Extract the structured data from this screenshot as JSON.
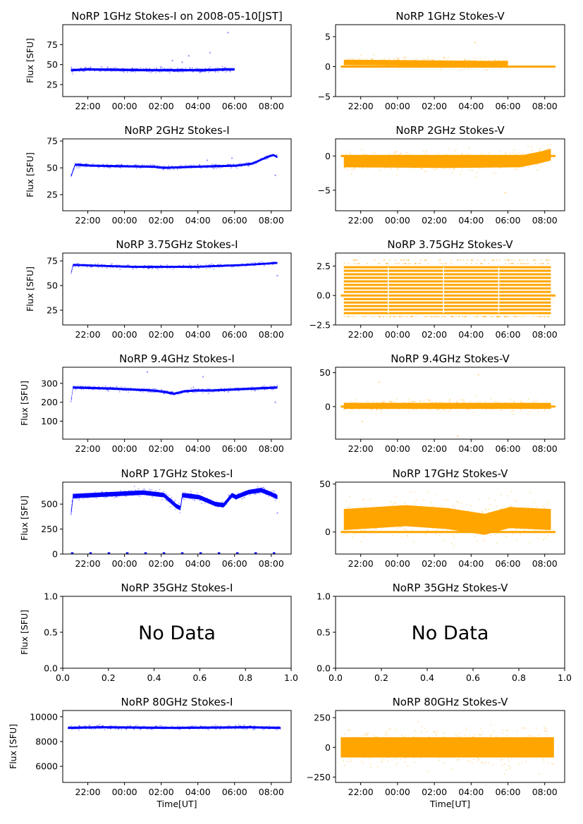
{
  "figure": {
    "xlabel": "Time[UT]",
    "ylabel": "Flux [SFU]",
    "colors": {
      "stokes_i": "#0000ff",
      "stokes_v": "#ffa500"
    }
  },
  "chart_data": [
    {
      "type": "scatter",
      "title": "NoRP 1GHz Stokes-I on 2008-05-10[JST]",
      "ylabel": "Flux [SFU]",
      "xlabel": "",
      "ylim": [
        10,
        100
      ],
      "yticks": [
        25,
        50,
        75
      ],
      "xlim": [
        "20:38",
        "09:05"
      ],
      "xticks": [
        "22:00",
        "00:00",
        "02:00",
        "04:00",
        "06:00",
        "08:00"
      ],
      "color": "#0000ff",
      "no_data": false,
      "series": {
        "start": "21:05",
        "end": "06:00",
        "profile": [
          [
            0,
            43
          ],
          [
            0.1,
            44
          ],
          [
            0.5,
            43
          ],
          [
            0.8,
            43
          ],
          [
            0.95,
            44
          ],
          [
            1,
            44
          ]
        ],
        "spread": 3,
        "outliers": [
          [
            0.55,
            47
          ],
          [
            0.62,
            55
          ],
          [
            0.68,
            53
          ],
          [
            0.72,
            61
          ],
          [
            0.85,
            65
          ],
          [
            0.96,
            90
          ]
        ]
      }
    },
    {
      "type": "scatter",
      "title": "NoRP 1GHz Stokes-V",
      "ylabel": "",
      "xlabel": "",
      "ylim": [
        -5,
        7
      ],
      "yticks": [
        -5,
        0,
        5
      ],
      "xlim": [
        "20:38",
        "09:05"
      ],
      "xticks": [
        "22:00",
        "00:00",
        "02:00",
        "04:00",
        "06:00",
        "08:00"
      ],
      "color": "#ffa500",
      "no_data": false,
      "series": {
        "start": "21:05",
        "end": "06:00",
        "profile": [
          [
            0,
            0.7
          ],
          [
            0.5,
            0.6
          ],
          [
            0.9,
            0.5
          ],
          [
            1,
            0.5
          ]
        ],
        "spread": 0.9,
        "zero_line": [
          "20:55",
          "08:35"
        ],
        "outliers": [
          [
            0.8,
            4
          ]
        ]
      }
    },
    {
      "type": "scatter",
      "title": "NoRP 2GHz Stokes-I",
      "ylabel": "Flux [SFU]",
      "xlabel": "",
      "ylim": [
        10,
        77
      ],
      "yticks": [
        25,
        50,
        75
      ],
      "xlim": [
        "20:38",
        "09:05"
      ],
      "xticks": [
        "22:00",
        "00:00",
        "02:00",
        "04:00",
        "06:00",
        "08:00"
      ],
      "color": "#0000ff",
      "no_data": false,
      "series": {
        "start": "21:05",
        "end": "08:20",
        "profile": [
          [
            0,
            42
          ],
          [
            0.02,
            53
          ],
          [
            0.1,
            52
          ],
          [
            0.4,
            51
          ],
          [
            0.45,
            50
          ],
          [
            0.6,
            51
          ],
          [
            0.8,
            52
          ],
          [
            0.88,
            54
          ],
          [
            0.95,
            60
          ],
          [
            0.98,
            62
          ],
          [
            1,
            60
          ]
        ],
        "spread": 2,
        "outliers": [
          [
            0.66,
            57
          ],
          [
            0.78,
            59
          ],
          [
            0.99,
            43
          ]
        ]
      }
    },
    {
      "type": "scatter",
      "title": "NoRP 2GHz Stokes-V",
      "ylabel": "",
      "xlabel": "",
      "ylim": [
        -8,
        2.5
      ],
      "yticks": [
        -5,
        0
      ],
      "xlim": [
        "20:38",
        "09:05"
      ],
      "xticks": [
        "22:00",
        "00:00",
        "02:00",
        "04:00",
        "06:00",
        "08:00"
      ],
      "color": "#ffa500",
      "no_data": false,
      "series": {
        "start": "21:05",
        "end": "08:20",
        "profile": [
          [
            0,
            -0.8
          ],
          [
            0.5,
            -0.9
          ],
          [
            0.85,
            -0.8
          ],
          [
            0.95,
            -0.2
          ],
          [
            1,
            0.2
          ]
        ],
        "spread": 1.7,
        "zero_line": [
          "20:55",
          "08:35"
        ],
        "outliers": [
          [
            0.78,
            -5.4
          ]
        ]
      }
    },
    {
      "type": "scatter",
      "title": "NoRP 3.75GHz Stokes-I",
      "ylabel": "Flux [SFU]",
      "xlabel": "",
      "ylim": [
        10,
        83
      ],
      "yticks": [
        25,
        50,
        75
      ],
      "xlim": [
        "20:38",
        "09:05"
      ],
      "xticks": [
        "22:00",
        "00:00",
        "02:00",
        "04:00",
        "06:00",
        "08:00"
      ],
      "color": "#0000ff",
      "no_data": false,
      "series": {
        "start": "21:05",
        "end": "08:20",
        "profile": [
          [
            0,
            62
          ],
          [
            0.01,
            71
          ],
          [
            0.3,
            69
          ],
          [
            0.6,
            69
          ],
          [
            0.85,
            71
          ],
          [
            1,
            73
          ]
        ],
        "spread": 2,
        "outliers": [
          [
            1,
            60
          ]
        ]
      }
    },
    {
      "type": "scatter",
      "title": "NoRP 3.75GHz Stokes-V",
      "ylabel": "",
      "xlabel": "",
      "ylim": [
        -2.5,
        3.6
      ],
      "yticks": [
        -2.5,
        0.0,
        2.5
      ],
      "xlim": [
        "20:38",
        "09:05"
      ],
      "xticks": [
        "22:00",
        "00:00",
        "02:00",
        "04:00",
        "06:00",
        "08:00"
      ],
      "color": "#ffa500",
      "no_data": false,
      "series": {
        "start": "21:05",
        "end": "08:20",
        "quantized_step": 0.3,
        "band": [
          -1.5,
          2.4
        ],
        "sparse_band": [
          -1.8,
          3.0
        ],
        "zero_line": [
          "20:55",
          "08:35"
        ]
      }
    },
    {
      "type": "scatter",
      "title": "NoRP 9.4GHz Stokes-I",
      "ylabel": "Flux [SFU]",
      "xlabel": "",
      "ylim": [
        5,
        385
      ],
      "yticks": [
        100,
        200,
        300
      ],
      "xlim": [
        "20:38",
        "09:05"
      ],
      "xticks": [
        "22:00",
        "00:00",
        "02:00",
        "04:00",
        "06:00",
        "08:00"
      ],
      "color": "#0000ff",
      "no_data": false,
      "series": {
        "start": "21:05",
        "end": "08:20",
        "profile": [
          [
            0,
            205
          ],
          [
            0.01,
            278
          ],
          [
            0.2,
            272
          ],
          [
            0.4,
            262
          ],
          [
            0.45,
            255
          ],
          [
            0.5,
            245
          ],
          [
            0.55,
            258
          ],
          [
            0.6,
            262
          ],
          [
            0.68,
            262
          ],
          [
            0.8,
            268
          ],
          [
            1,
            278
          ]
        ],
        "spread": 12,
        "outliers": [
          [
            0.37,
            360
          ],
          [
            0.64,
            335
          ],
          [
            0.99,
            200
          ]
        ]
      }
    },
    {
      "type": "scatter",
      "title": "NoRP 9.4GHz Stokes-V",
      "ylabel": "",
      "xlabel": "",
      "ylim": [
        -48,
        58
      ],
      "yticks": [
        0,
        50
      ],
      "xlim": [
        "20:38",
        "09:05"
      ],
      "xticks": [
        "22:00",
        "00:00",
        "02:00",
        "04:00",
        "06:00",
        "08:00"
      ],
      "color": "#ffa500",
      "no_data": false,
      "series": {
        "start": "21:05",
        "end": "08:20",
        "profile": [
          [
            0,
            1
          ],
          [
            1,
            1
          ]
        ],
        "spread": 9,
        "zero_line": [
          "20:55",
          "08:35"
        ],
        "outliers": [
          [
            0.17,
            36
          ],
          [
            0.65,
            47
          ],
          [
            0.55,
            -43
          ],
          [
            0.09,
            -22
          ]
        ]
      }
    },
    {
      "type": "scatter",
      "title": "NoRP 17GHz Stokes-I",
      "ylabel": "Flux [SFU]",
      "xlabel": "",
      "ylim": [
        0,
        720
      ],
      "yticks": [
        0,
        250,
        500
      ],
      "xlim": [
        "20:38",
        "09:05"
      ],
      "xticks": [
        "22:00",
        "00:00",
        "02:00",
        "04:00",
        "06:00",
        "08:00"
      ],
      "color": "#0000ff",
      "no_data": false,
      "series": {
        "start": "21:05",
        "end": "08:20",
        "profile": [
          [
            0,
            400
          ],
          [
            0.01,
            580
          ],
          [
            0.2,
            600
          ],
          [
            0.35,
            615
          ],
          [
            0.45,
            590
          ],
          [
            0.51,
            480
          ],
          [
            0.53,
            460
          ],
          [
            0.54,
            590
          ],
          [
            0.62,
            570
          ],
          [
            0.7,
            500
          ],
          [
            0.74,
            490
          ],
          [
            0.76,
            540
          ],
          [
            0.78,
            590
          ],
          [
            0.8,
            570
          ],
          [
            0.86,
            620
          ],
          [
            0.92,
            640
          ],
          [
            0.97,
            600
          ],
          [
            1,
            570
          ]
        ],
        "spread": 45,
        "zero_dashes": true,
        "outliers": [
          [
            1,
            410
          ]
        ]
      }
    },
    {
      "type": "scatter",
      "title": "NoRP 17GHz Stokes-V",
      "ylabel": "",
      "xlabel": "",
      "ylim": [
        -23,
        52
      ],
      "yticks": [
        0,
        50
      ],
      "xlim": [
        "20:38",
        "09:05"
      ],
      "xticks": [
        "22:00",
        "00:00",
        "02:00",
        "04:00",
        "06:00",
        "08:00"
      ],
      "color": "#ffa500",
      "no_data": false,
      "series": {
        "start": "21:05",
        "end": "08:20",
        "profile": [
          [
            0,
            13
          ],
          [
            0.3,
            17
          ],
          [
            0.5,
            14
          ],
          [
            0.62,
            10
          ],
          [
            0.68,
            8
          ],
          [
            0.8,
            15
          ],
          [
            1,
            13
          ]
        ],
        "spread": 22,
        "zero_line": [
          "20:55",
          "08:35"
        ]
      }
    },
    {
      "type": "scatter",
      "title": "NoRP 35GHz Stokes-I",
      "ylabel": "Flux [SFU]",
      "xlabel": "",
      "ylim": [
        0.0,
        1.0
      ],
      "yticks": [
        "0.0",
        "0.5",
        "1.0"
      ],
      "xlim": [
        0.0,
        1.0
      ],
      "xticks": [
        "0.0",
        "0.2",
        "0.4",
        "0.6",
        "0.8",
        "1.0"
      ],
      "no_data": true,
      "annotation": "No Data"
    },
    {
      "type": "scatter",
      "title": "NoRP 35GHz Stokes-V",
      "ylabel": "",
      "xlabel": "",
      "ylim": [
        0.0,
        1.0
      ],
      "yticks": [
        "0.0",
        "0.5",
        "1.0"
      ],
      "xlim": [
        0.0,
        1.0
      ],
      "xticks": [
        "0.0",
        "0.2",
        "0.4",
        "0.6",
        "0.8",
        "1.0"
      ],
      "no_data": true,
      "annotation": "No Data"
    },
    {
      "type": "scatter",
      "title": "NoRP 80GHz Stokes-I",
      "ylabel": "Flux [SFU]",
      "xlabel": "Time[UT]",
      "ylim": [
        4700,
        10500
      ],
      "yticks": [
        6000,
        8000,
        10000
      ],
      "xlim": [
        "20:38",
        "09:05"
      ],
      "xticks": [
        "22:00",
        "00:00",
        "02:00",
        "04:00",
        "06:00",
        "08:00"
      ],
      "color": "#0000ff",
      "no_data": false,
      "series": {
        "start": "20:55",
        "end": "08:30",
        "profile": [
          [
            0,
            9100
          ],
          [
            0.15,
            9150
          ],
          [
            0.5,
            9100
          ],
          [
            0.85,
            9150
          ],
          [
            1,
            9100
          ]
        ],
        "spread": 180
      }
    },
    {
      "type": "scatter",
      "title": "NoRP 80GHz Stokes-V",
      "ylabel": "",
      "xlabel": "Time[UT]",
      "ylim": [
        -295,
        310
      ],
      "yticks": [
        -250,
        0,
        250
      ],
      "xlim": [
        "20:38",
        "09:05"
      ],
      "xticks": [
        "22:00",
        "00:00",
        "02:00",
        "04:00",
        "06:00",
        "08:00"
      ],
      "color": "#ffa500",
      "no_data": false,
      "series": {
        "start": "20:55",
        "end": "08:30",
        "profile": [
          [
            0,
            0
          ],
          [
            1,
            0
          ]
        ],
        "spread": 170
      }
    }
  ]
}
